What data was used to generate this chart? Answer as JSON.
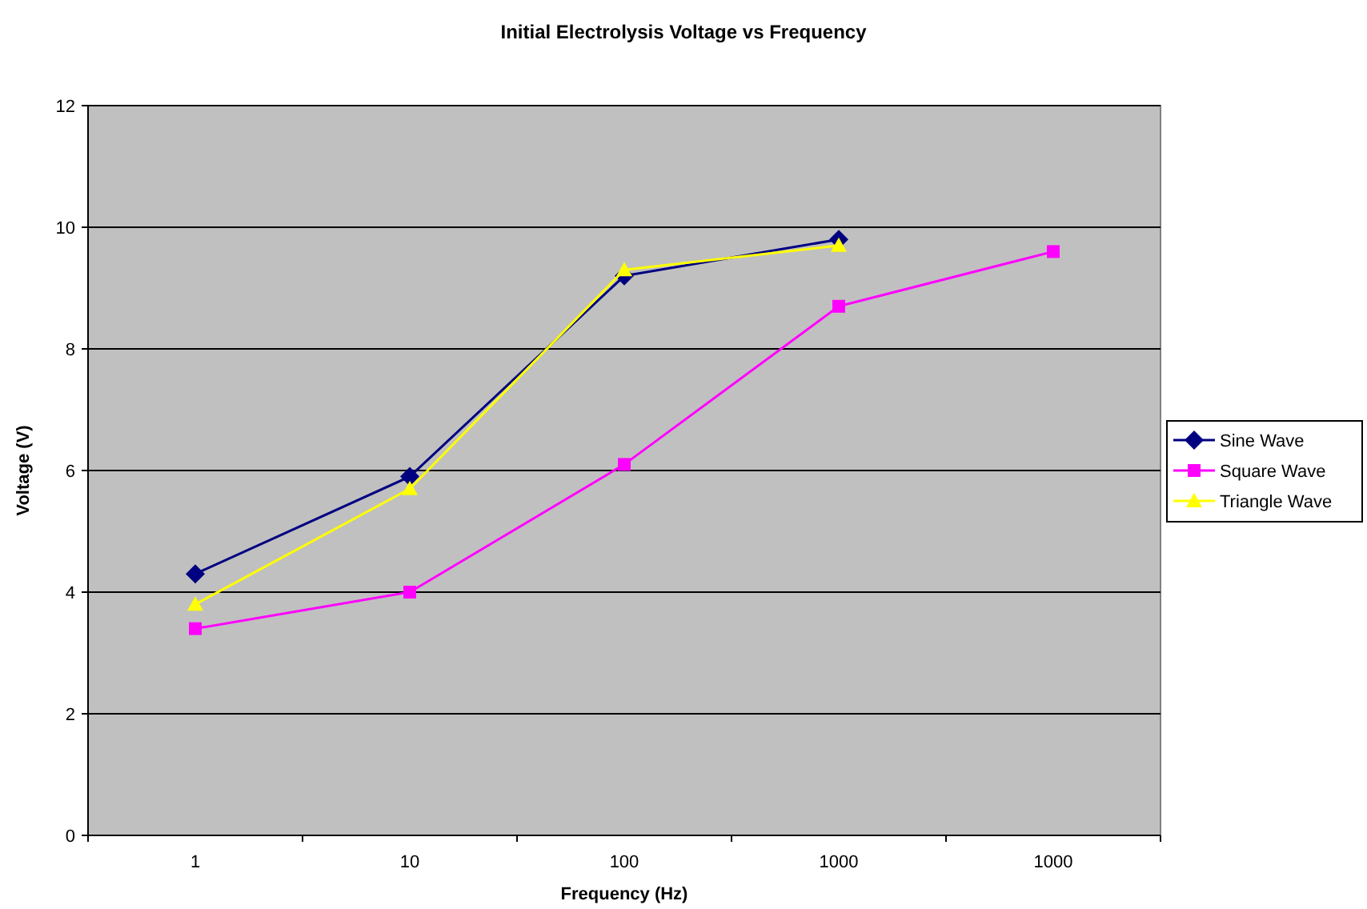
{
  "chart_data": {
    "type": "line",
    "title": "Initial Electrolysis Voltage vs Frequency",
    "xlabel": "Frequency (Hz)",
    "ylabel": "Voltage (V)",
    "categories": [
      "1",
      "10",
      "100",
      "1000",
      "1000"
    ],
    "series": [
      {
        "name": "Sine Wave",
        "color": "#000080",
        "marker": "diamond",
        "values": [
          4.3,
          5.9,
          9.2,
          9.8,
          null
        ]
      },
      {
        "name": "Square Wave",
        "color": "#ff00ff",
        "marker": "square",
        "values": [
          3.4,
          4.0,
          6.1,
          8.7,
          9.6
        ]
      },
      {
        "name": "Triangle Wave",
        "color": "#ffff00",
        "marker": "triangle",
        "values": [
          3.8,
          5.7,
          9.3,
          9.7,
          null
        ]
      }
    ],
    "ylim": [
      0,
      12
    ],
    "yticks": [
      0,
      2,
      4,
      6,
      8,
      10,
      12
    ],
    "grid": "y",
    "legend": "right"
  }
}
